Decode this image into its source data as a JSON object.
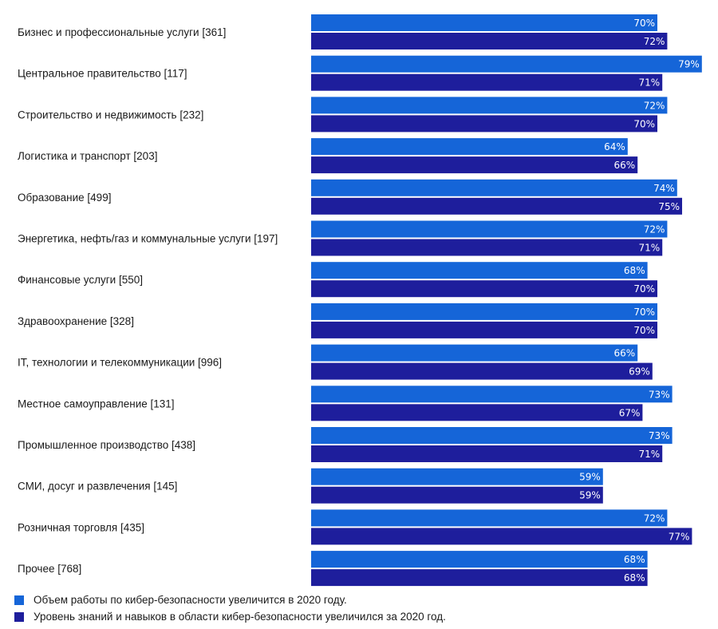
{
  "chart_data": {
    "type": "bar",
    "orientation": "horizontal",
    "categories": [
      "Бизнес и профессиональные услуги [361]",
      "Центральное правительство [117]",
      "Строительство и недвижимость [232]",
      "Логистика и транспорт [203]",
      "Образование [499]",
      "Энергетика, нефть/газ и коммунальные услуги [197]",
      "Финансовые услуги [550]",
      "Здравоохранение [328]",
      "IT, технологии и телекоммуникации [996]",
      "Местное самоуправление [131]",
      "Промышленное производство [438]",
      "СМИ, досуг и развлечения [145]",
      "Розничная торговля [435]",
      "Прочее [768]"
    ],
    "series": [
      {
        "name": "Объем работы по кибер-безопасности увеличится в 2020 году.",
        "color": "#1565d8",
        "values": [
          70,
          79,
          72,
          64,
          74,
          72,
          68,
          70,
          66,
          73,
          73,
          59,
          72,
          68
        ],
        "labels": [
          "70%",
          "79%",
          "72%",
          "64%",
          "74%",
          "72%",
          "68%",
          "70%",
          "66%",
          "73%",
          "73%",
          "59%",
          "72%",
          "68%"
        ]
      },
      {
        "name": "Уровень знаний и навыков в области кибер-безопасности увеличился за 2020 год.",
        "color": "#1e1e9c",
        "values": [
          72,
          71,
          70,
          66,
          75,
          71,
          70,
          70,
          69,
          67,
          71,
          59,
          77,
          68
        ],
        "labels": [
          "72%",
          "71%",
          "70%",
          "66%",
          "75%",
          "71%",
          "70%",
          "70%",
          "69%",
          "67%",
          "71%",
          "59%",
          "77%",
          "68%"
        ]
      }
    ],
    "xlim": [
      0,
      80
    ],
    "grid": false,
    "legend": "bottom-left"
  }
}
